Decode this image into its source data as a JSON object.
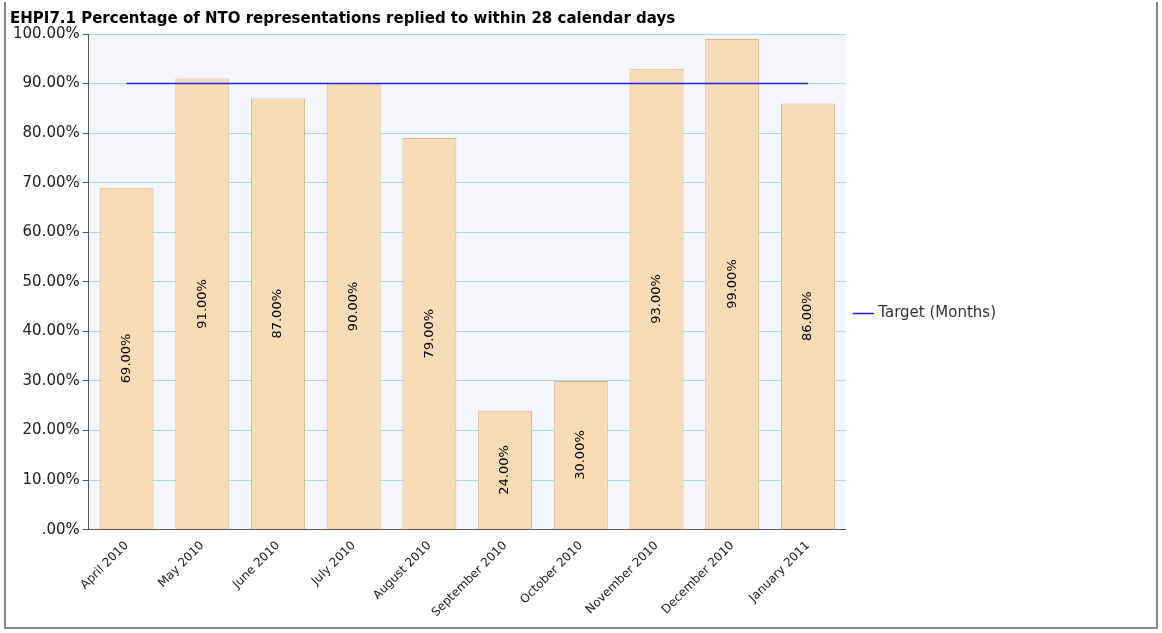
{
  "chart_data": {
    "type": "bar",
    "title": "EHPI7.1 Percentage of NTO representations replied to within 28 calendar days",
    "categories": [
      "April 2010",
      "May 2010",
      "June 2010",
      "July 2010",
      "August 2010",
      "September 2010",
      "October 2010",
      "November 2010",
      "December 2010",
      "January 2011"
    ],
    "series": [
      {
        "color": "#f8dcb8",
        "values": [
          69,
          91,
          87,
          90,
          79,
          24,
          30,
          93,
          99,
          86
        ],
        "value_labels": [
          "69.00%",
          "91.00%",
          "87.00%",
          "90.00%",
          "79.00%",
          "24.00%",
          "30.00%",
          "93.00%",
          "99.00%",
          "86.00%"
        ]
      },
      {
        "type": "line",
        "name": "Target (Months)",
        "color": "#2222ee",
        "values": [
          90,
          90,
          90,
          90,
          90,
          90,
          90,
          90,
          90,
          90
        ]
      }
    ],
    "ylim": [
      0,
      100
    ],
    "yticks": [
      {
        "value": 0,
        "label": ".00%"
      },
      {
        "value": 10,
        "label": "10.00%"
      },
      {
        "value": 20,
        "label": "20.00%"
      },
      {
        "value": 30,
        "label": "30.00%"
      },
      {
        "value": 40,
        "label": "40.00%"
      },
      {
        "value": 50,
        "label": "50.00%"
      },
      {
        "value": 60,
        "label": "60.00%"
      },
      {
        "value": 70,
        "label": "70.00%"
      },
      {
        "value": 80,
        "label": "80.00%"
      },
      {
        "value": 90,
        "label": "90.00%"
      },
      {
        "value": 100,
        "label": "100.00%"
      }
    ],
    "grid": "y",
    "legend": "right",
    "marker": "none"
  }
}
